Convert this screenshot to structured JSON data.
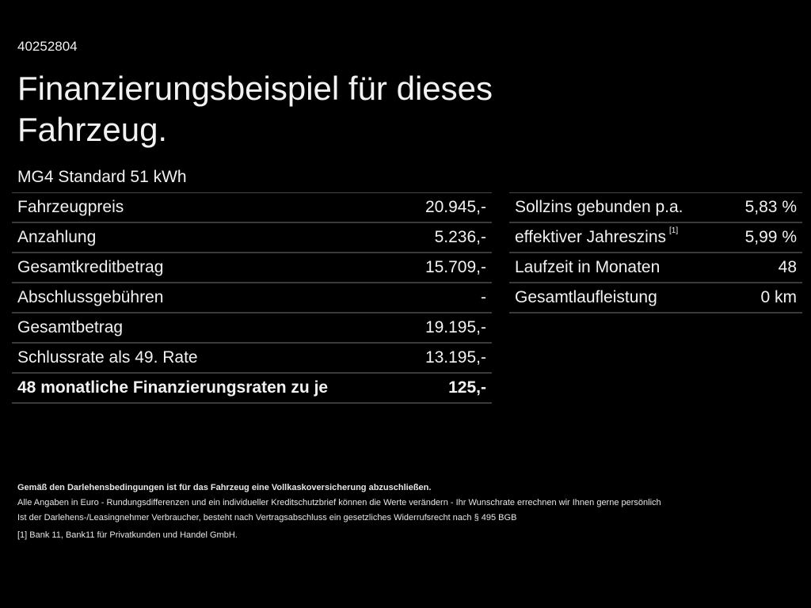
{
  "id_number": "40252804",
  "title": "Finanzierungsbeispiel für dieses Fahrzeug.",
  "model": "MG4 Standard 51 kWh",
  "left_table": [
    {
      "label": "Fahrzeugpreis",
      "value": "20.945,-"
    },
    {
      "label": "Anzahlung",
      "value": "5.236,-"
    },
    {
      "label": "Gesamtkreditbetrag",
      "value": "15.709,-"
    },
    {
      "label": "Abschlussgebühren",
      "value": "-"
    },
    {
      "label": "Gesamtbetrag",
      "value": "19.195,-"
    },
    {
      "label": "Schlussrate als 49. Rate",
      "value": "13.195,-"
    },
    {
      "label": "48 monatliche Finanzierungsraten zu je",
      "value": "125,-"
    }
  ],
  "right_table": [
    {
      "label": "Sollzins gebunden p.a.",
      "value": "5,83 %"
    },
    {
      "label": "effektiver Jahreszins",
      "footnote": "[1]",
      "value": "5,99 %"
    },
    {
      "label": "Laufzeit in Monaten",
      "value": "48"
    },
    {
      "label": "Gesamtlaufleistung",
      "value": "0 km"
    }
  ],
  "notes": {
    "insurance": "Gemäß den Darlehensbedingungen ist für das Fahrzeug eine Vollkaskoversicherung abzuschließen.",
    "line1": "Alle Angaben in Euro - Rundungsdifferenzen und ein individueller Kreditschutzbrief können die Werte verändern - Ihr Wunschrate errechnen wir Ihnen gerne persönlich",
    "line2": "Ist der Darlehens-/Leasingnehmer Verbraucher, besteht nach Vertragsabschluss ein gesetzliches Widerrufsrecht nach § 495 BGB",
    "footnote_marker": "[1]",
    "footnote_text": "Bank 11, Bank11 für Privatkunden und Handel GmbH."
  }
}
